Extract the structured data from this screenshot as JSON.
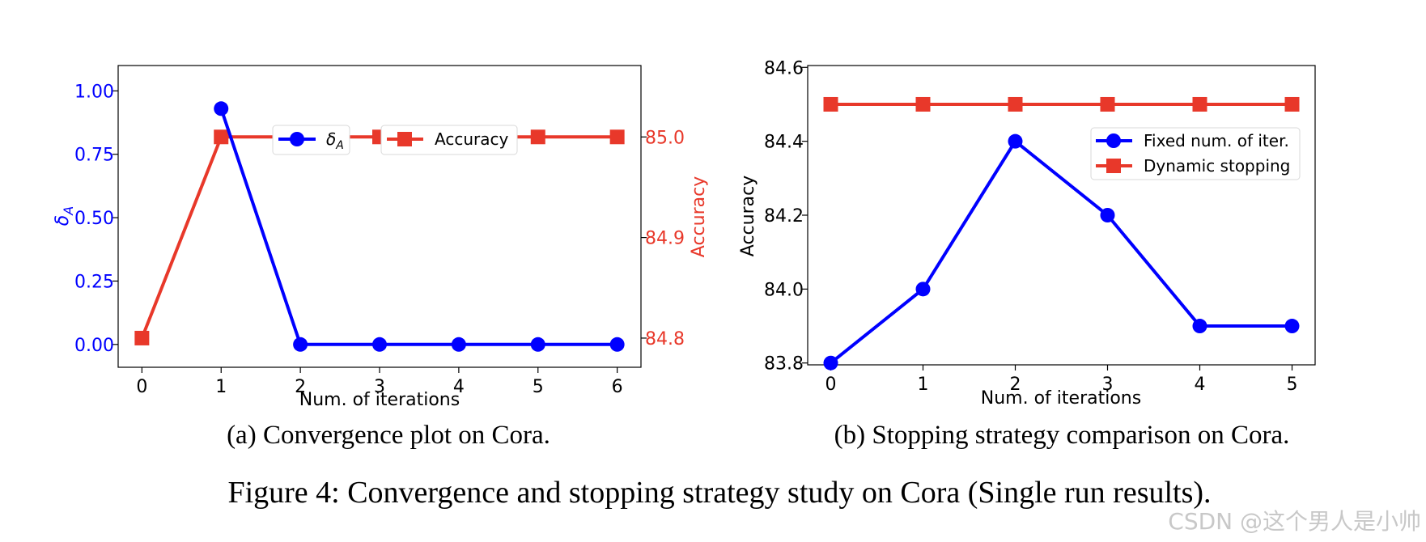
{
  "colors": {
    "blue": "#0000ff",
    "red": "#e8382a",
    "black": "#000000"
  },
  "chart_data": [
    {
      "type": "line",
      "panel": "a",
      "caption": "(a) Convergence plot on Cora.",
      "xlabel": "Num. of iterations",
      "x": [
        0,
        1,
        2,
        3,
        4,
        5,
        6
      ],
      "x_ticks": [
        "0",
        "1",
        "2",
        "3",
        "4",
        "5",
        "6"
      ],
      "xlim": [
        -0.3,
        6.3
      ],
      "left_axis": {
        "label": "δA",
        "label_main": "δ",
        "label_sub": "A",
        "ylim": [
          -0.09,
          1.1
        ],
        "ticks": [
          0.0,
          0.25,
          0.5,
          0.75,
          1.0
        ],
        "tick_labels": [
          "0.00",
          "0.25",
          "0.50",
          "0.75",
          "1.00"
        ]
      },
      "right_axis": {
        "label": "Accuracy",
        "ylim": [
          84.771,
          85.071
        ],
        "ticks": [
          84.8,
          84.9,
          85.0
        ],
        "tick_labels": [
          "84.8",
          "84.9",
          "85.0"
        ]
      },
      "series": [
        {
          "name": "δA",
          "legend_main": "δ",
          "legend_sub": "A",
          "axis": "left",
          "marker": "circle",
          "color": "#0000ff",
          "values": [
            null,
            0.93,
            0.0,
            0.0,
            0.0,
            0.0,
            0.0
          ]
        },
        {
          "name": "Accuracy",
          "axis": "right",
          "marker": "square",
          "color": "#e8382a",
          "values": [
            84.8,
            85.0,
            85.0,
            85.0,
            85.0,
            85.0,
            85.0
          ]
        }
      ],
      "legend": "top-center"
    },
    {
      "type": "line",
      "panel": "b",
      "caption": "(b)  Stopping strategy comparison on Cora.",
      "xlabel": "Num. of iterations",
      "ylabel": "Accuracy",
      "x": [
        0,
        1,
        2,
        3,
        4,
        5
      ],
      "x_ticks": [
        "0",
        "1",
        "2",
        "3",
        "4",
        "5"
      ],
      "xlim": [
        -0.25,
        5.25
      ],
      "ylim": [
        83.795,
        84.605
      ],
      "y_ticks": [
        83.8,
        84.0,
        84.2,
        84.4,
        84.6
      ],
      "y_tick_labels": [
        "83.8",
        "84.0",
        "84.2",
        "84.4",
        "84.6"
      ],
      "series": [
        {
          "name": "Fixed num. of iter.",
          "marker": "circle",
          "color": "#0000ff",
          "values": [
            83.8,
            84.0,
            84.4,
            84.2,
            83.9,
            83.9
          ]
        },
        {
          "name": "Dynamic stopping",
          "marker": "square",
          "color": "#e8382a",
          "values": [
            84.5,
            84.5,
            84.5,
            84.5,
            84.5,
            84.5
          ]
        }
      ],
      "legend": "upper-right"
    }
  ],
  "figure_caption": "Figure 4: Convergence and stopping strategy study on Cora (Single run results).",
  "watermark": "CSDN @这个男人是小帅"
}
